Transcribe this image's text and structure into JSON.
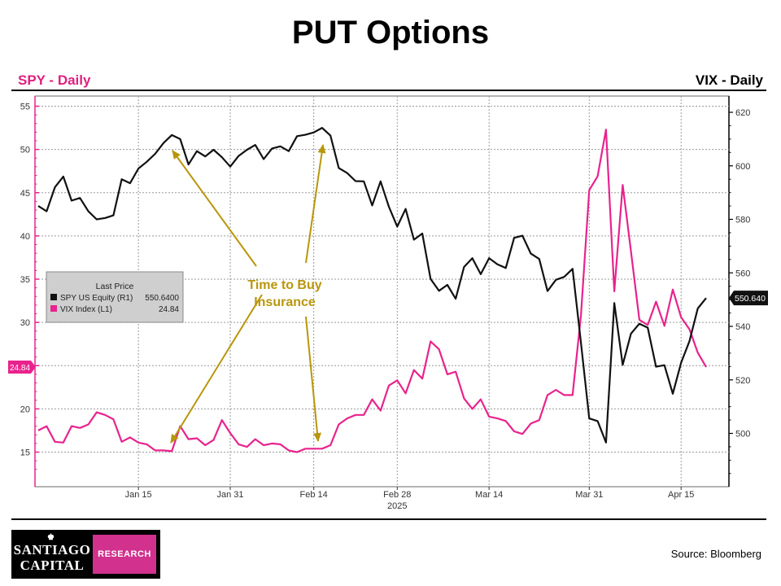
{
  "title": "PUT Options",
  "left_label": "SPY - Daily",
  "right_label": "VIX - Daily",
  "source": "Source: Bloomberg",
  "logo": {
    "line1": "SANTIAGO",
    "line2": "CAPITAL",
    "tag": "RESEARCH",
    "emblem": "♚"
  },
  "chart_data": {
    "type": "line",
    "x_tick_labels": [
      "Jan 15",
      "Jan 31",
      "Feb 14",
      "Feb 28",
      "Mar 14",
      "Mar 31",
      "Apr 15"
    ],
    "x_year_label": "2025",
    "left_axis": {
      "ticks": [
        "15",
        "20",
        "25",
        "30",
        "35",
        "40",
        "45",
        "50",
        "55"
      ],
      "range": [
        12,
        56
      ]
    },
    "right_axis": {
      "ticks": [
        "500",
        "520",
        "540",
        "560",
        "580",
        "600",
        "620"
      ],
      "range": [
        480,
        620
      ]
    },
    "legend": {
      "title": "Last Price",
      "entries": [
        {
          "name": "SPY US Equity  (R1)",
          "value": "550.6400",
          "color": "#111111"
        },
        {
          "name": "VIX Index  (L1)",
          "value": "24.84",
          "color": "#e8238d"
        }
      ]
    },
    "last_value_tags": {
      "spy": "550.640",
      "vix": "24.84"
    },
    "annotation": {
      "line1": "Time to Buy",
      "line2": "Insurance",
      "color": "#b8960c"
    },
    "colors": {
      "spy": "#111111",
      "vix": "#e8238d",
      "grid": "#9a9a9a",
      "arrow": "#b8960c"
    },
    "series": [
      {
        "name": "SPY US Equity",
        "axis": "right",
        "values": [
          585,
          583,
          592,
          596,
          587,
          588,
          583,
          580,
          580.5,
          581.5,
          595,
          593.5,
          599,
          601.5,
          604.5,
          608.5,
          611.5,
          610,
          600.5,
          605.5,
          603.5,
          606,
          603.2,
          599.7,
          603.7,
          606,
          607.8,
          602.5,
          606.5,
          607.3,
          605.5,
          611.1,
          611.6,
          612.5,
          614.2,
          611.3,
          599.2,
          597.3,
          594.3,
          594.2,
          585.2,
          594.2,
          584.7,
          577.3,
          583.9,
          572.4,
          574.7,
          557.7,
          553.3,
          555.5,
          550.3,
          562.2,
          565.5,
          559.5,
          565.5,
          563.2,
          561.8,
          573.1,
          573.9,
          567.2,
          565.2,
          553.2,
          557.4,
          558.5,
          561.5,
          533.9,
          505.6,
          504.6,
          496.6,
          548.7,
          525.6,
          537.3,
          541,
          539.5,
          524.9,
          525.5,
          514.8,
          526.4,
          534.5,
          546.7,
          550.6
        ]
      },
      {
        "name": "VIX Index",
        "axis": "left",
        "values": [
          17.5,
          18,
          16.2,
          16.1,
          18,
          17.8,
          18.2,
          19.6,
          19.3,
          18.8,
          16.2,
          16.7,
          16.1,
          15.9,
          15.2,
          15.2,
          15.1,
          18,
          16.5,
          16.6,
          15.8,
          16.4,
          18.7,
          17.2,
          15.9,
          15.6,
          16.5,
          15.8,
          16,
          15.9,
          15.2,
          15,
          15.4,
          15.4,
          15.4,
          15.8,
          18.2,
          18.9,
          19.3,
          19.3,
          21.1,
          19.8,
          22.7,
          23.3,
          21.8,
          24.5,
          23.5,
          27.8,
          26.9,
          24,
          24.3,
          21.2,
          20,
          21.1,
          19.1,
          18.9,
          18.6,
          17.4,
          17.1,
          18.3,
          18.7,
          21.6,
          22.2,
          21.6,
          21.6,
          30.8,
          45.3,
          46.9,
          52.3,
          33.6,
          45.9,
          38.2,
          30.3,
          29.7,
          32.4,
          29.6,
          33.8,
          30.6,
          29.2,
          26.5,
          24.84
        ]
      }
    ]
  }
}
